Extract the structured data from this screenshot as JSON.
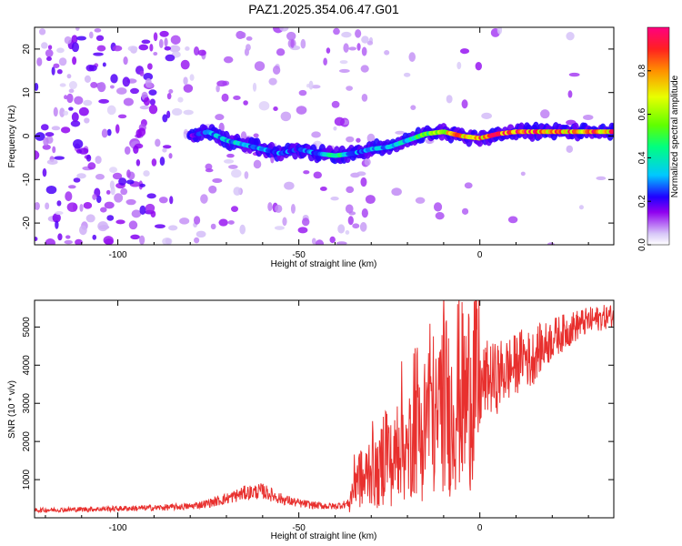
{
  "figure": {
    "title": "PAZ1.2025.354.06.47.G01"
  },
  "chart_data": [
    {
      "type": "heatmap",
      "name": "spectrogram",
      "xlabel": "Height of straight line (km)",
      "ylabel": "Frequency (Hz)",
      "xlim": [
        -123,
        37
      ],
      "ylim": [
        -25,
        25
      ],
      "xticks": [
        -100,
        -50,
        0
      ],
      "yticks": [
        -20,
        -10,
        0,
        10,
        20
      ],
      "colorbar": {
        "label": "Normalized spectral amplitude",
        "range": [
          0,
          1
        ],
        "ticks": [
          0.0,
          0.2,
          0.4,
          0.6,
          0.8
        ],
        "tick_labels": [
          "0.0",
          "0.2",
          "0.4",
          "0.6",
          "0.8"
        ]
      },
      "ridge": {
        "x": [
          -80,
          -75,
          -70,
          -65,
          -60,
          -55,
          -50,
          -45,
          -40,
          -35,
          -30,
          -25,
          -20,
          -15,
          -10,
          -5,
          0,
          5,
          10,
          15,
          20,
          25,
          30,
          37
        ],
        "frequency": [
          0,
          1,
          -1,
          -2,
          -3,
          -4,
          -3,
          -4,
          -4.5,
          -4,
          -3,
          -2.5,
          -1,
          0.5,
          1,
          0,
          -0.5,
          0.5,
          1,
          1,
          1,
          1,
          1,
          1
        ],
        "amplitude": [
          0.2,
          0.3,
          0.35,
          0.35,
          0.3,
          0.3,
          0.25,
          0.3,
          0.5,
          0.3,
          0.3,
          0.35,
          0.4,
          0.55,
          0.7,
          0.8,
          0.85,
          0.9,
          0.9,
          0.9,
          0.85,
          0.85,
          0.85,
          0.85
        ]
      }
    },
    {
      "type": "line",
      "name": "snr",
      "xlabel": "Height of straight line (km)",
      "ylabel": "SNR (10 * v/v)",
      "xlim": [
        -123,
        37
      ],
      "ylim": [
        0,
        5700
      ],
      "xticks": [
        -100,
        -50,
        0
      ],
      "yticks": [
        1000,
        2000,
        3000,
        4000,
        5000
      ],
      "color": "#e8302e",
      "series": [
        {
          "name": "SNR",
          "x": [
            -123,
            -110,
            -100,
            -90,
            -85,
            -80,
            -75,
            -70,
            -65,
            -60,
            -55,
            -50,
            -45,
            -40,
            -36,
            -34,
            -32,
            -30,
            -28,
            -26,
            -24,
            -22,
            -20,
            -18,
            -16,
            -14,
            -12,
            -10,
            -8,
            -6,
            -4,
            -2,
            0,
            2,
            4,
            6,
            8,
            10,
            12,
            14,
            16,
            18,
            20,
            22,
            24,
            26,
            28,
            30,
            32,
            34,
            37
          ],
          "y": [
            200,
            220,
            240,
            260,
            280,
            300,
            380,
            500,
            650,
            700,
            500,
            380,
            320,
            300,
            380,
            1200,
            900,
            1500,
            1000,
            2000,
            1200,
            2500,
            1500,
            3000,
            2000,
            3200,
            2400,
            3300,
            2600,
            3400,
            3000,
            3700,
            3300,
            3700,
            3600,
            3800,
            3900,
            4000,
            4300,
            4100,
            4400,
            4500,
            4700,
            4800,
            4900,
            5000,
            5100,
            5150,
            5200,
            5250,
            5300
          ]
        }
      ]
    }
  ]
}
